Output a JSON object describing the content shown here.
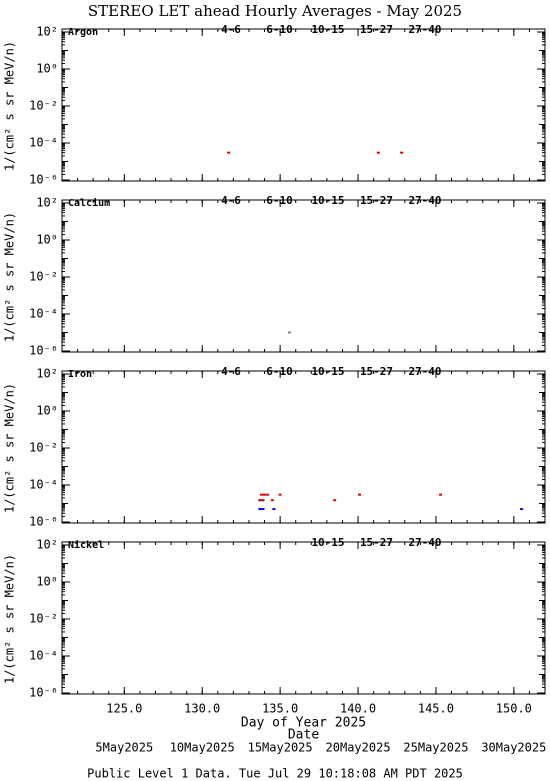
{
  "chart_data": [
    {
      "type": "scatter",
      "title": "STEREO LET ahead Hourly Averages - May 2025",
      "panel_label": "Argon",
      "ylabel": "1/(cm² s sr MeV/n)",
      "log_y": true,
      "xlim": [
        121,
        152
      ],
      "xticks": [
        125,
        130,
        135,
        140,
        145,
        150
      ],
      "ylim": [
        1e-06,
        100
      ],
      "yticks": [
        {
          "value": 100,
          "label": "10²"
        },
        {
          "value": 1,
          "label": "10⁰"
        },
        {
          "value": 0.01,
          "label": "10⁻²"
        },
        {
          "value": 0.0001,
          "label": "10⁻⁴"
        },
        {
          "value": 1e-06,
          "label": "10⁻⁶"
        }
      ],
      "series": [
        {
          "name": "4-6",
          "color": "#b00000",
          "x": [],
          "values": []
        },
        {
          "name": "6-10",
          "color": "#e00000",
          "x": [
            131.7,
            141.3,
            142.8
          ],
          "values": [
            3e-05,
            3e-05,
            3e-05
          ]
        },
        {
          "name": "10-15",
          "color": "#808080",
          "x": [],
          "values": []
        },
        {
          "name": "15-27",
          "color": "#0000ff",
          "x": [],
          "values": []
        },
        {
          "name": "27-40",
          "color": "#000000",
          "x": [],
          "values": []
        }
      ]
    },
    {
      "type": "scatter",
      "panel_label": "Calcium",
      "ylabel": "1/(cm² s sr MeV/n)",
      "log_y": true,
      "xlim": [
        121,
        152
      ],
      "xticks": [
        125,
        130,
        135,
        140,
        145,
        150
      ],
      "ylim": [
        1e-06,
        100
      ],
      "yticks": [
        {
          "value": 100,
          "label": "10²"
        },
        {
          "value": 1,
          "label": "10⁰"
        },
        {
          "value": 0.01,
          "label": "10⁻²"
        },
        {
          "value": 0.0001,
          "label": "10⁻⁴"
        },
        {
          "value": 1e-06,
          "label": "10⁻⁶"
        }
      ],
      "series": [
        {
          "name": "4-6",
          "color": "#b00000",
          "x": [],
          "values": []
        },
        {
          "name": "6-10",
          "color": "#e00000",
          "x": [],
          "values": []
        },
        {
          "name": "10-15",
          "color": "#808080",
          "x": [
            135.6
          ],
          "values": [
            1e-05
          ]
        },
        {
          "name": "15-27",
          "color": "#0000ff",
          "x": [],
          "values": []
        },
        {
          "name": "27-40",
          "color": "#000000",
          "x": [],
          "values": []
        }
      ]
    },
    {
      "type": "scatter",
      "panel_label": "Iron",
      "ylabel": "1/(cm² s sr MeV/n)",
      "log_y": true,
      "xlim": [
        121,
        152
      ],
      "xticks": [
        125,
        130,
        135,
        140,
        145,
        150
      ],
      "ylim": [
        1e-06,
        100
      ],
      "yticks": [
        {
          "value": 100,
          "label": "10²"
        },
        {
          "value": 1,
          "label": "10⁰"
        },
        {
          "value": 0.01,
          "label": "10⁻²"
        },
        {
          "value": 0.0001,
          "label": "10⁻⁴"
        },
        {
          "value": 1e-06,
          "label": "10⁻⁶"
        }
      ],
      "series": [
        {
          "name": "4-6",
          "color": "#b00000",
          "x": [
            133.7,
            133.9
          ],
          "values": [
            1.5e-05,
            1.5e-05
          ]
        },
        {
          "name": "6-10",
          "color": "#e00000",
          "x": [
            133.8,
            134.0,
            134.2,
            134.5,
            135.0,
            138.5,
            140.1,
            145.3
          ],
          "values": [
            3e-05,
            3e-05,
            3e-05,
            1.5e-05,
            3e-05,
            1.5e-05,
            3e-05,
            3e-05
          ]
        },
        {
          "name": "10-15",
          "color": "#808080",
          "x": [],
          "values": []
        },
        {
          "name": "15-27",
          "color": "#0000ff",
          "x": [
            133.7,
            133.9,
            134.6,
            150.5
          ],
          "values": [
            5e-06,
            5e-06,
            5e-06,
            5e-06
          ]
        },
        {
          "name": "27-40",
          "color": "#000000",
          "x": [],
          "values": []
        }
      ]
    },
    {
      "type": "scatter",
      "panel_label": "Nickel",
      "ylabel": "1/(cm² s sr MeV/n)",
      "log_y": true,
      "xlim": [
        121,
        152
      ],
      "xticks": [
        {
          "value": 125,
          "label": "125.0"
        },
        {
          "value": 130,
          "label": "130.0"
        },
        {
          "value": 135,
          "label": "135.0"
        },
        {
          "value": 140,
          "label": "140.0"
        },
        {
          "value": 145,
          "label": "145.0"
        },
        {
          "value": 150,
          "label": "150.0"
        }
      ],
      "xlabel": "Day of Year 2025",
      "x2ticks": [
        {
          "value": 125,
          "label": "5May2025"
        },
        {
          "value": 130,
          "label": "10May2025"
        },
        {
          "value": 135,
          "label": "15May2025"
        },
        {
          "value": 140,
          "label": "20May2025"
        },
        {
          "value": 145,
          "label": "25May2025"
        },
        {
          "value": 150,
          "label": "30May2025"
        }
      ],
      "x2label": "Date",
      "footnote": "Public Level 1 Data. Tue Jul 29 10:18:08 AM PDT 2025",
      "ylim": [
        1e-06,
        100
      ],
      "yticks": [
        {
          "value": 100,
          "label": "10²"
        },
        {
          "value": 1,
          "label": "10⁰"
        },
        {
          "value": 0.01,
          "label": "10⁻²"
        },
        {
          "value": 0.0001,
          "label": "10⁻⁴"
        },
        {
          "value": 1e-06,
          "label": "10⁻⁶"
        }
      ],
      "series": [
        {
          "name": "10-15",
          "color": "#808080",
          "x": [],
          "values": []
        },
        {
          "name": "15-27",
          "color": "#0000ff",
          "x": [],
          "values": []
        },
        {
          "name": "27-40",
          "color": "#000000",
          "x": [],
          "values": []
        }
      ]
    }
  ]
}
